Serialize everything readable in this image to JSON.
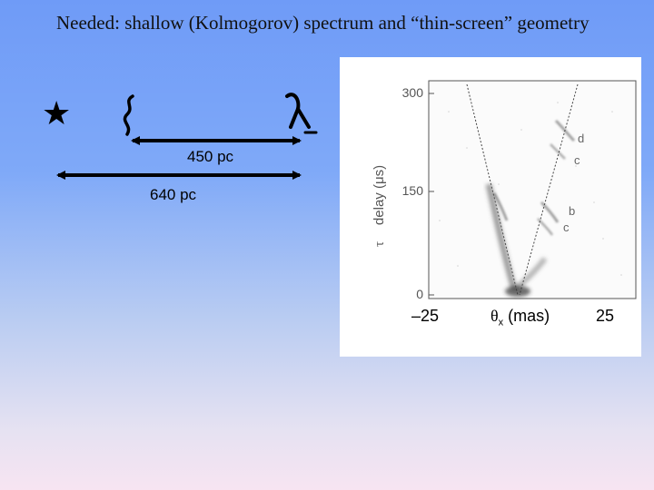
{
  "slide": {
    "title": "Needed:  shallow (Kolmogorov) spectrum and “thin-screen” geometry"
  },
  "diagram": {
    "star_symbol": "★",
    "distances": [
      {
        "label": "450 pc"
      },
      {
        "label": "640 pc"
      }
    ]
  },
  "figure": {
    "y_axis_label": "delay (μs)",
    "y_axis_prefix": "τ",
    "y_ticks": [
      "300",
      "150",
      "0"
    ],
    "x_tick_left": "–25",
    "x_tick_right": "25",
    "x_axis_label_symbol": "θ",
    "x_axis_label_sub": "x",
    "x_axis_label_unit": " (mas)",
    "arc_labels": [
      "d",
      "c",
      "b",
      "c"
    ]
  }
}
